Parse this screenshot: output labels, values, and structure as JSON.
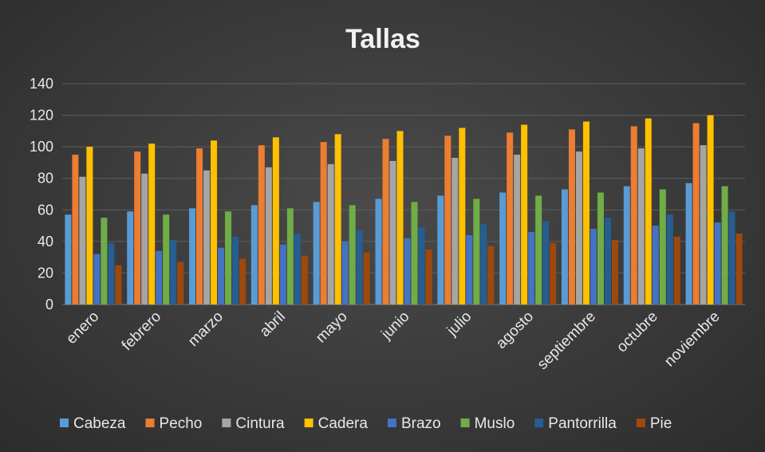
{
  "chart_data": {
    "type": "bar",
    "title": "Tallas",
    "xlabel": "",
    "ylabel": "",
    "ylim": [
      0,
      140
    ],
    "yticks": [
      "0",
      "20",
      "40",
      "60",
      "80",
      "100",
      "120",
      "140"
    ],
    "grid": true,
    "legend_position": "bottom",
    "categories": [
      "enero",
      "febrero",
      "marzo",
      "abril",
      "mayo",
      "junio",
      "julio",
      "agosto",
      "septiembre",
      "octubre",
      "noviembre"
    ],
    "series": [
      {
        "name": "Cabeza",
        "color": "#5b9bd5",
        "values": [
          57,
          59,
          61,
          63,
          65,
          67,
          69,
          71,
          73,
          75,
          77
        ]
      },
      {
        "name": "Pecho",
        "color": "#ed7d31",
        "values": [
          95,
          97,
          99,
          101,
          103,
          105,
          107,
          109,
          111,
          113,
          115
        ]
      },
      {
        "name": "Cintura",
        "color": "#a5a5a5",
        "values": [
          81,
          83,
          85,
          87,
          89,
          91,
          93,
          95,
          97,
          99,
          101
        ]
      },
      {
        "name": "Cadera",
        "color": "#ffc000",
        "values": [
          100,
          102,
          104,
          106,
          108,
          110,
          112,
          114,
          116,
          118,
          120
        ]
      },
      {
        "name": "Brazo",
        "color": "#4472c4",
        "values": [
          32,
          34,
          36,
          38,
          40,
          42,
          44,
          46,
          48,
          50,
          52
        ]
      },
      {
        "name": "Muslo",
        "color": "#70ad47",
        "values": [
          55,
          57,
          59,
          61,
          63,
          65,
          67,
          69,
          71,
          73,
          75
        ]
      },
      {
        "name": "Pantorrilla",
        "color": "#255e91",
        "values": [
          39,
          41,
          43,
          45,
          47,
          49,
          51,
          53,
          55,
          57,
          59
        ]
      },
      {
        "name": "Pie",
        "color": "#9e480e",
        "values": [
          25,
          27,
          29,
          31,
          33,
          35,
          37,
          39,
          41,
          43,
          45
        ]
      }
    ]
  }
}
